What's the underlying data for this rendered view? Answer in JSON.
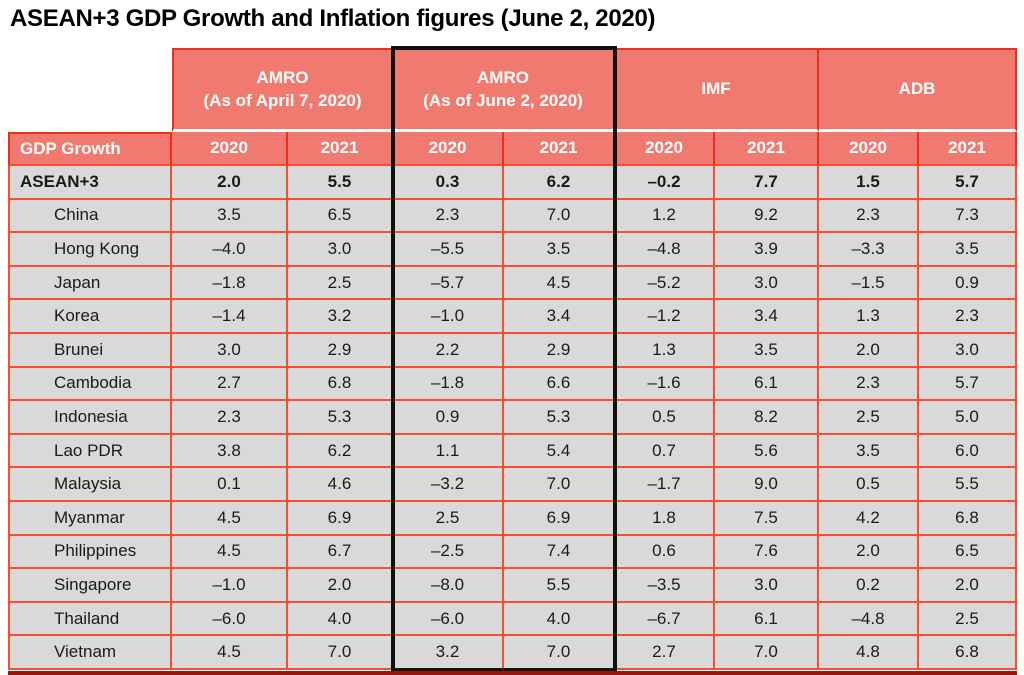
{
  "colors": {
    "salmon": "#F07A70",
    "header_line": "#EF2E1A",
    "data_line": "#FA4C2E",
    "cell_grey": "#D9D9D9",
    "bottom_bar": "#9A150B",
    "highlight_outline": "#111111",
    "header_text": "#FFFFFF",
    "body_text": "#1A1A1A"
  },
  "chart_data": {
    "type": "table",
    "title": "ASEAN+3 GDP Growth and Inflation figures (June 2, 2020)",
    "measure": "GDP Growth",
    "groups": [
      {
        "id": "amro-april",
        "label": "AMRO\n(As of April 7, 2020)",
        "highlighted": false
      },
      {
        "id": "amro-june",
        "label": "AMRO\n(As of June 2, 2020)",
        "highlighted": true
      },
      {
        "id": "imf",
        "label": "IMF",
        "highlighted": false
      },
      {
        "id": "adb",
        "label": "ADB",
        "highlighted": false
      }
    ],
    "year_headers": [
      "2020",
      "2021",
      "2020",
      "2021",
      "2020",
      "2021",
      "2020",
      "2021"
    ],
    "rows": [
      {
        "label": "ASEAN+3",
        "bold": true,
        "values": [
          "2.0",
          "5.5",
          "0.3",
          "6.2",
          "–0.2",
          "7.7",
          "1.5",
          "5.7"
        ]
      },
      {
        "label": "China",
        "bold": false,
        "values": [
          "3.5",
          "6.5",
          "2.3",
          "7.0",
          "1.2",
          "9.2",
          "2.3",
          "7.3"
        ]
      },
      {
        "label": "Hong Kong",
        "bold": false,
        "values": [
          "–4.0",
          "3.0",
          "–5.5",
          "3.5",
          "–4.8",
          "3.9",
          "–3.3",
          "3.5"
        ]
      },
      {
        "label": "Japan",
        "bold": false,
        "values": [
          "–1.8",
          "2.5",
          "–5.7",
          "4.5",
          "–5.2",
          "3.0",
          "–1.5",
          "0.9"
        ]
      },
      {
        "label": "Korea",
        "bold": false,
        "values": [
          "–1.4",
          "3.2",
          "–1.0",
          "3.4",
          "–1.2",
          "3.4",
          "1.3",
          "2.3"
        ]
      },
      {
        "label": "Brunei",
        "bold": false,
        "values": [
          "3.0",
          "2.9",
          "2.2",
          "2.9",
          "1.3",
          "3.5",
          "2.0",
          "3.0"
        ]
      },
      {
        "label": "Cambodia",
        "bold": false,
        "values": [
          "2.7",
          "6.8",
          "–1.8",
          "6.6",
          "–1.6",
          "6.1",
          "2.3",
          "5.7"
        ]
      },
      {
        "label": "Indonesia",
        "bold": false,
        "values": [
          "2.3",
          "5.3",
          "0.9",
          "5.3",
          "0.5",
          "8.2",
          "2.5",
          "5.0"
        ]
      },
      {
        "label": "Lao PDR",
        "bold": false,
        "values": [
          "3.8",
          "6.2",
          "1.1",
          "5.4",
          "0.7",
          "5.6",
          "3.5",
          "6.0"
        ]
      },
      {
        "label": "Malaysia",
        "bold": false,
        "values": [
          "0.1",
          "4.6",
          "–3.2",
          "7.0",
          "–1.7",
          "9.0",
          "0.5",
          "5.5"
        ]
      },
      {
        "label": "Myanmar",
        "bold": false,
        "values": [
          "4.5",
          "6.9",
          "2.5",
          "6.9",
          "1.8",
          "7.5",
          "4.2",
          "6.8"
        ]
      },
      {
        "label": "Philippines",
        "bold": false,
        "values": [
          "4.5",
          "6.7",
          "–2.5",
          "7.4",
          "0.6",
          "7.6",
          "2.0",
          "6.5"
        ]
      },
      {
        "label": "Singapore",
        "bold": false,
        "values": [
          "–1.0",
          "2.0",
          "–8.0",
          "5.5",
          "–3.5",
          "3.0",
          "0.2",
          "2.0"
        ]
      },
      {
        "label": "Thailand",
        "bold": false,
        "values": [
          "–6.0",
          "4.0",
          "–6.0",
          "4.0",
          "–6.7",
          "6.1",
          "–4.8",
          "2.5"
        ]
      },
      {
        "label": "Vietnam",
        "bold": false,
        "values": [
          "4.5",
          "7.0",
          "3.2",
          "7.0",
          "2.7",
          "7.0",
          "4.8",
          "6.8"
        ]
      }
    ]
  }
}
